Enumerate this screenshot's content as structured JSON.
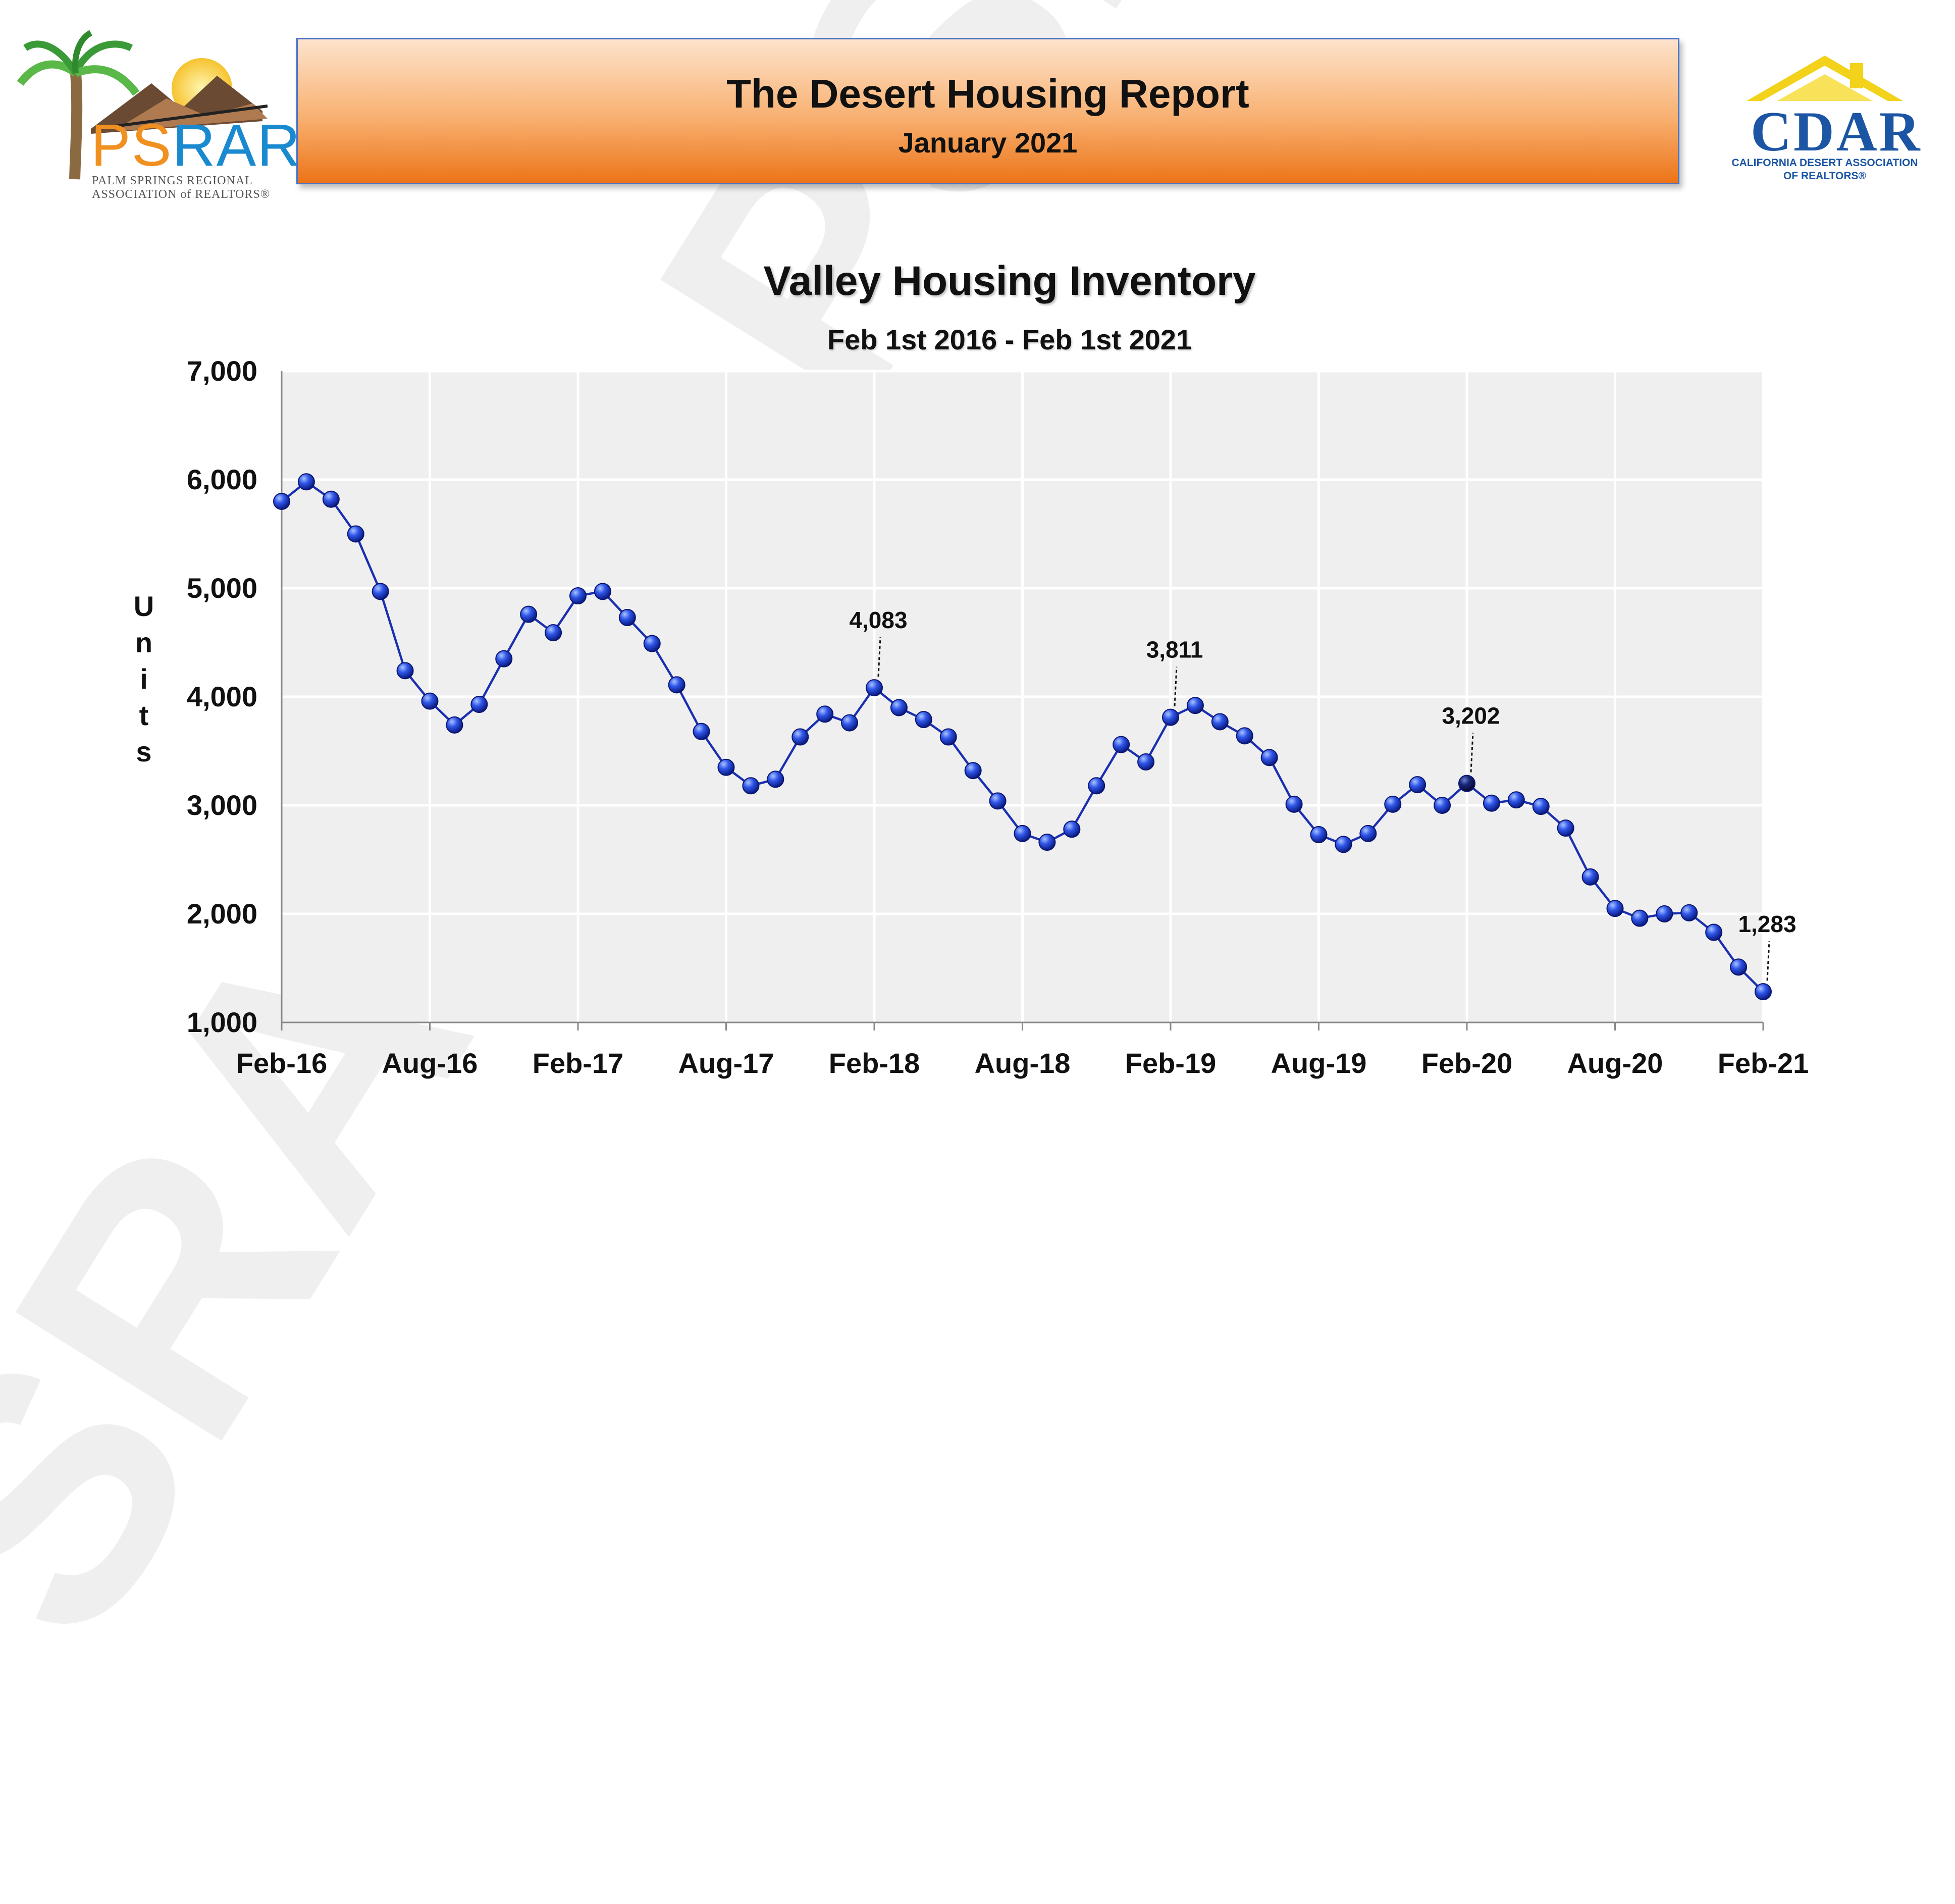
{
  "header": {
    "title": "The Desert Housing Report",
    "subtitle": "January 2021"
  },
  "logos": {
    "left": {
      "mark_ps": "PS",
      "mark_rar": "RAR",
      "line1": "PALM SPRINGS REGIONAL",
      "line2": "ASSOCIATION of REALTORS®"
    },
    "right": {
      "mark": "CDAR",
      "line1": "CALIFORNIA DESERT ASSOCIATION",
      "line2": "OF REALTORS®"
    }
  },
  "watermark": "PSRAR & PSRAR",
  "colors": {
    "line": "#1a2fb0",
    "marker": "#1540d8",
    "marker_dark": "#0a1a80",
    "plot_bg": "#efefef",
    "grid": "#ffffff",
    "banner_top": "#fde3cc",
    "banner_bottom": "#ec7418"
  },
  "chart_data": {
    "type": "line",
    "title": "Valley Housing Inventory",
    "subtitle": "Feb 1st 2016 - Feb 1st 2021",
    "ylabel": "Units",
    "ylim": [
      1000,
      7000
    ],
    "yticks": [
      "1,000",
      "2,000",
      "3,000",
      "4,000",
      "5,000",
      "6,000",
      "7,000"
    ],
    "xtick_labels": [
      "Feb-16",
      "Aug-16",
      "Feb-17",
      "Aug-17",
      "Feb-18",
      "Aug-18",
      "Feb-19",
      "Aug-19",
      "Feb-20",
      "Aug-20",
      "Feb-21"
    ],
    "grid": true,
    "series": [
      {
        "x_start": "Feb-16",
        "values": [
          5800,
          5980,
          5820,
          5500,
          4970,
          4240,
          3960,
          3740,
          3930,
          4350,
          4760,
          4590,
          4930,
          4970,
          4730,
          4490,
          4110,
          3680,
          3350,
          3180,
          3240,
          3630,
          3840,
          3760,
          4083,
          3900,
          3790,
          3630,
          3320,
          3040,
          2740,
          2660,
          2780,
          3180,
          3560,
          3400,
          3811,
          3920,
          3770,
          3640,
          3440,
          3010,
          2730,
          2640,
          2740,
          3010,
          3190,
          3000,
          3202,
          3020,
          3050,
          2990,
          2790,
          2340,
          2050,
          1960,
          2000,
          2010,
          1830,
          1510,
          1283
        ]
      }
    ],
    "annotations": [
      {
        "x": "Feb-18",
        "value": 4083,
        "label": "4,083"
      },
      {
        "x": "Feb-19",
        "value": 3811,
        "label": "3,811"
      },
      {
        "x": "Feb-20",
        "value": 3202,
        "label": "3,202"
      },
      {
        "x": "Feb-21",
        "value": 1283,
        "label": "1,283"
      }
    ]
  }
}
